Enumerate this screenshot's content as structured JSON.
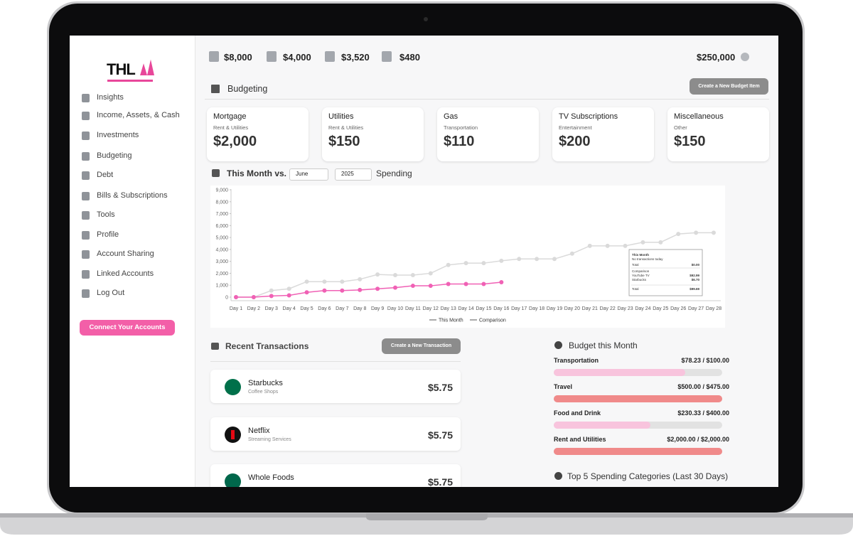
{
  "logo": {
    "text": "THL"
  },
  "sidebar": {
    "nav": [
      "Insights",
      "Income, Assets, & Cash",
      "Investments",
      "Budgeting",
      "Debt",
      "Bills & Subscriptions",
      "Tools",
      "Profile",
      "Account Sharing",
      "Linked Accounts",
      "Log Out"
    ],
    "connect_button": "Connect Your Accounts"
  },
  "topbar": {
    "stats": [
      "$8,000",
      "$4,000",
      "$3,520",
      "$480"
    ],
    "net_worth": "$250,000"
  },
  "budgeting": {
    "title": "Budgeting",
    "button": "Create a New Budget Item",
    "cards": [
      {
        "name": "Mortgage",
        "category": "Rent & Utilities",
        "amount": "$2,000"
      },
      {
        "name": "Utilities",
        "category": "Rent & Utilities",
        "amount": "$150"
      },
      {
        "name": "Gas",
        "category": "Transportation",
        "amount": "$110"
      },
      {
        "name": "TV Subscriptions",
        "category": "Entertainment",
        "amount": "$200"
      },
      {
        "name": "Miscellaneous",
        "category": "Other",
        "amount": "$150"
      }
    ]
  },
  "spending": {
    "label": "This Month vs.",
    "month": "June",
    "year": "2025",
    "suffix": "Spending"
  },
  "chart_data": {
    "type": "line",
    "categories": [
      "Day 1",
      "Day 2",
      "Day 3",
      "Day 4",
      "Day 5",
      "Day 6",
      "Day 7",
      "Day 8",
      "Day 9",
      "Day 10",
      "Day 11",
      "Day 12",
      "Day 13",
      "Day 14",
      "Day 15",
      "Day 16",
      "Day 17",
      "Day 18",
      "Day 19",
      "Day 20",
      "Day 21",
      "Day 22",
      "Day 23",
      "Day 24",
      "Day 25",
      "Day 26",
      "Day 27",
      "Day 28"
    ],
    "series": [
      {
        "name": "This Month",
        "color": "#f061b5",
        "values": [
          0,
          0,
          100,
          150,
          400,
          550,
          550,
          600,
          700,
          800,
          950,
          950,
          1100,
          1100,
          1100,
          1250,
          null,
          null,
          null,
          null,
          null,
          null,
          null,
          null,
          null,
          null,
          null,
          null
        ]
      },
      {
        "name": "Comparison",
        "color": "#dadada",
        "values": [
          0,
          0,
          550,
          700,
          1300,
          1300,
          1300,
          1500,
          1900,
          1850,
          1850,
          2000,
          2700,
          2850,
          2850,
          3050,
          3200,
          3200,
          3200,
          3650,
          4300,
          4300,
          4300,
          4600,
          4600,
          5300,
          5400,
          5400
        ]
      }
    ],
    "ylim": [
      0,
      9000
    ],
    "yticks": [
      0,
      {
        "value": 1000,
        "label": "1,000"
      },
      {
        "value": 2000,
        "label": "2,000"
      },
      {
        "value": 3000,
        "label": "3,000"
      },
      {
        "value": 4000,
        "label": "4,000"
      },
      {
        "value": 5000,
        "label": "5,000"
      },
      {
        "value": 6000,
        "label": "6,000"
      },
      {
        "value": 7000,
        "label": "7,000"
      },
      {
        "value": 8000,
        "label": "8,000"
      },
      {
        "value": 9000,
        "label": "9,000"
      }
    ],
    "tooltip": {
      "title": "This Month",
      "note": "No transactions today",
      "total_label": "Total",
      "total": "$0.00",
      "comparison_title": "Comparison",
      "comparison_rows": [
        [
          "YouTube TV",
          "$92.99"
        ],
        [
          "Starbucks",
          "$6.70"
        ]
      ],
      "comparison_total_label": "Total",
      "comparison_total": "$99.69"
    }
  },
  "transactions": {
    "title": "Recent Transactions",
    "button": "Create a New Transaction",
    "rows": [
      {
        "name": "Starbucks",
        "category": "Coffee Shops",
        "amount": "$5.75"
      },
      {
        "name": "Netflix",
        "category": "Streaming Services",
        "amount": "$5.75"
      },
      {
        "name": "Whole Foods",
        "amount": "$5.75"
      }
    ]
  },
  "budget_month": {
    "title": "Budget this Month",
    "items": [
      {
        "name": "Transportation",
        "spent": 78.23,
        "limit": 100,
        "label": "$78.23 / $100.00"
      },
      {
        "name": "Travel",
        "spent": 500,
        "limit": 475,
        "label": "$500.00 / $475.00"
      },
      {
        "name": "Food and Drink",
        "spent": 230.33,
        "limit": 400,
        "label": "$230.33 / $400.00"
      },
      {
        "name": "Rent and Utilities",
        "spent": 2000,
        "limit": 2000,
        "label": "$2,000.00 / $2,000.00"
      }
    ]
  },
  "top_spending": {
    "title": "Top 5 Spending Categories (Last 30 Days)"
  }
}
